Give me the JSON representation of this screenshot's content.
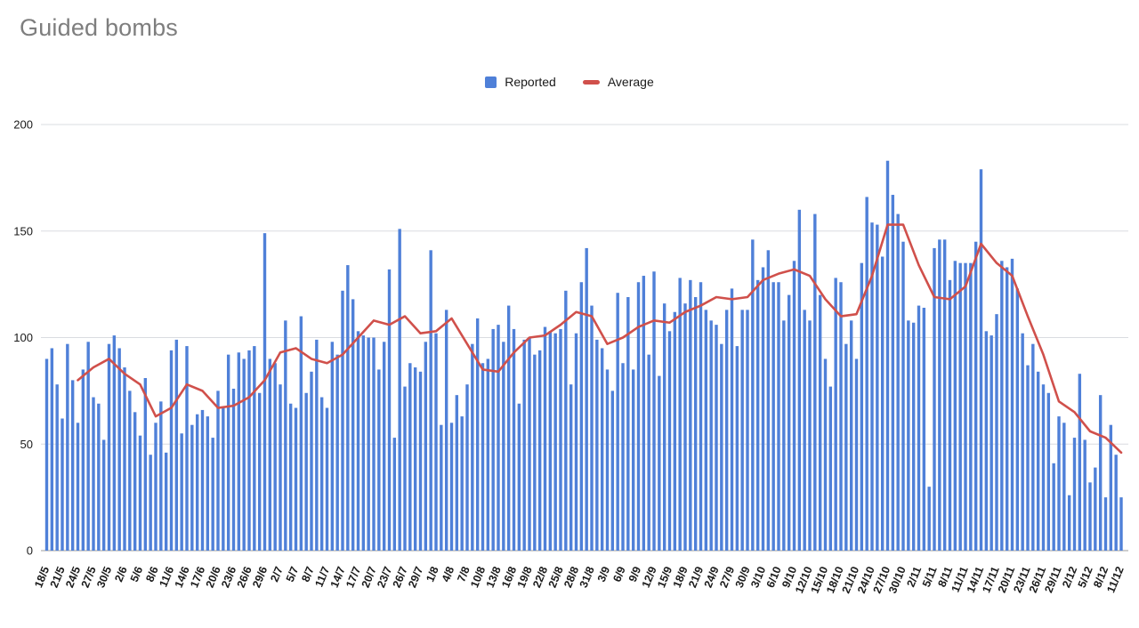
{
  "title": "Guided bombs",
  "legend": {
    "reported_label": "Reported",
    "average_label": "Average"
  },
  "colors": {
    "bar": "#4f80d8",
    "line": "#d0504b",
    "title_text": "#7e7e7e",
    "grid": "#dadce0",
    "baseline": "#9e9e9e",
    "axis_text": "#1a1a1a"
  },
  "chart_data": {
    "type": "bar",
    "title": "Guided bombs",
    "xlabel": "",
    "ylabel": "",
    "ylim": [
      0,
      200
    ],
    "y_ticks": [
      0,
      50,
      100,
      150,
      200
    ],
    "grid": true,
    "legend_position": "top",
    "x_tick_step": 3,
    "x_tick_labels": [
      "18/5",
      "21/5",
      "24/5",
      "27/5",
      "30/5",
      "2/6",
      "5/6",
      "8/6",
      "11/6",
      "14/6",
      "17/6",
      "20/6",
      "23/6",
      "26/6",
      "29/6",
      "2/7",
      "5/7",
      "8/7",
      "11/7",
      "14/7",
      "17/7",
      "20/7",
      "23/7",
      "26/7",
      "29/7",
      "1/8",
      "4/8",
      "7/8",
      "10/8",
      "13/8",
      "16/8",
      "19/8",
      "22/8",
      "25/8",
      "28/8",
      "31/8",
      "3/9",
      "6/9",
      "9/9",
      "12/9",
      "15/9",
      "18/9",
      "21/9",
      "24/9",
      "27/9",
      "30/9",
      "3/10",
      "6/10",
      "9/10",
      "12/10",
      "15/10",
      "18/10",
      "21/10",
      "24/10",
      "27/10",
      "30/10",
      "2/11",
      "5/11",
      "8/11",
      "11/11",
      "14/11",
      "17/11",
      "20/11",
      "23/11",
      "26/11",
      "29/11",
      "2/12",
      "5/12",
      "8/12",
      "11/12"
    ],
    "series": [
      {
        "name": "Reported",
        "type": "bar",
        "color": "#4f80d8",
        "values": [
          90,
          95,
          78,
          62,
          97,
          80,
          60,
          85,
          98,
          72,
          69,
          52,
          97,
          101,
          95,
          86,
          75,
          65,
          54,
          81,
          45,
          60,
          70,
          46,
          94,
          99,
          55,
          96,
          59,
          64,
          66,
          63,
          53,
          75,
          67,
          92,
          76,
          93,
          90,
          94,
          96,
          74,
          149,
          90,
          88,
          78,
          108,
          69,
          67,
          110,
          74,
          84,
          99,
          72,
          67,
          98,
          92,
          122,
          134,
          118,
          103,
          101,
          100,
          100,
          85,
          98,
          132,
          53,
          151,
          77,
          88,
          86,
          84,
          98,
          141,
          102,
          59,
          113,
          60,
          73,
          63,
          78,
          97,
          109,
          88,
          90,
          104,
          106,
          98,
          115,
          104,
          69,
          99,
          100,
          92,
          94,
          105,
          103,
          102,
          104,
          122,
          78,
          102,
          126,
          142,
          115,
          99,
          95,
          85,
          75,
          121,
          88,
          119,
          85,
          126,
          129,
          92,
          131,
          82,
          116,
          103,
          112,
          128,
          116,
          127,
          119,
          126,
          113,
          108,
          106,
          97,
          113,
          123,
          96,
          113,
          113,
          146,
          127,
          133,
          141,
          126,
          126,
          108,
          120,
          136,
          160,
          113,
          108,
          158,
          120,
          90,
          77,
          128,
          126,
          97,
          108,
          90,
          135,
          166,
          154,
          153,
          138,
          183,
          167,
          158,
          145,
          108,
          107,
          115,
          114,
          30,
          142,
          146,
          146,
          127,
          136,
          135,
          135,
          135,
          145,
          179,
          103,
          101,
          111,
          136,
          133,
          137,
          123,
          102,
          87,
          97,
          84,
          78,
          74,
          41,
          63,
          60,
          26,
          53,
          83,
          52,
          32,
          39,
          73,
          25,
          59,
          45,
          25
        ]
      },
      {
        "name": "Average",
        "type": "line",
        "color": "#d0504b",
        "start_day": 6,
        "step": 3,
        "values": [
          80,
          86,
          90,
          83,
          78,
          63,
          67,
          78,
          75,
          67,
          68,
          72,
          80,
          93,
          95,
          90,
          88,
          92,
          100,
          108,
          106,
          110,
          102,
          103,
          109,
          97,
          85,
          84,
          93,
          100,
          101,
          106,
          112,
          110,
          97,
          100,
          105,
          108,
          107,
          112,
          115,
          119,
          118,
          119,
          127,
          130,
          132,
          129,
          118,
          110,
          111,
          129,
          153,
          153,
          134,
          119,
          118,
          124,
          144,
          135,
          129,
          110,
          92,
          70,
          65,
          56,
          53,
          46
        ]
      }
    ]
  }
}
